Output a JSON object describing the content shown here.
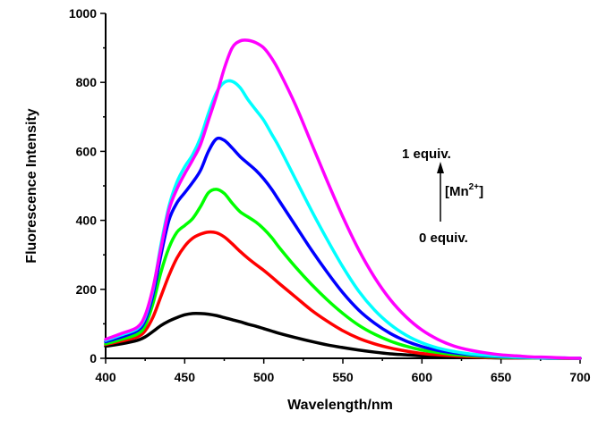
{
  "chart_data": {
    "type": "line",
    "title": "",
    "xlabel": "Wavelength/nm",
    "ylabel": "Fluorescence Intensity",
    "xlim": [
      400,
      700
    ],
    "ylim": [
      0,
      1000
    ],
    "x_ticks": [
      400,
      450,
      500,
      550,
      600,
      650,
      700
    ],
    "y_ticks": [
      0,
      200,
      400,
      600,
      800,
      1000
    ],
    "grid": false,
    "legend": "none",
    "annotations": {
      "top": "1 equiv.",
      "bottom": "0 equiv.",
      "arrow_label_main": "[Mn",
      "arrow_label_sup": "2+",
      "arrow_label_end": "]"
    },
    "x": [
      400,
      410,
      420,
      425,
      430,
      435,
      440,
      445,
      450,
      455,
      460,
      465,
      470,
      475,
      480,
      485,
      490,
      495,
      500,
      505,
      510,
      520,
      530,
      540,
      550,
      560,
      570,
      580,
      590,
      600,
      610,
      620,
      630,
      640,
      650,
      660,
      670,
      680,
      690,
      700
    ],
    "series": [
      {
        "color": "#000000",
        "values": [
          35,
          42,
          52,
          62,
          78,
          95,
          108,
          118,
          126,
          130,
          130,
          128,
          124,
          118,
          112,
          106,
          99,
          93,
          86,
          79,
          72,
          60,
          49,
          39,
          31,
          24,
          18,
          13,
          10,
          7,
          5,
          4,
          3,
          2,
          1,
          1,
          1,
          0,
          0,
          0
        ]
      },
      {
        "color": "#ff0000",
        "values": [
          40,
          50,
          62,
          80,
          120,
          180,
          240,
          290,
          325,
          348,
          360,
          366,
          364,
          352,
          332,
          310,
          290,
          272,
          255,
          236,
          216,
          178,
          140,
          108,
          80,
          58,
          42,
          30,
          21,
          14,
          10,
          7,
          5,
          3,
          2,
          1,
          1,
          1,
          0,
          0
        ]
      },
      {
        "color": "#00ff00",
        "values": [
          42,
          55,
          70,
          95,
          160,
          250,
          320,
          365,
          385,
          405,
          440,
          480,
          490,
          478,
          450,
          425,
          410,
          395,
          375,
          350,
          320,
          265,
          215,
          170,
          130,
          96,
          70,
          50,
          35,
          24,
          17,
          11,
          8,
          5,
          3,
          2,
          1,
          1,
          0,
          0
        ]
      },
      {
        "color": "#0000ff",
        "values": [
          48,
          62,
          80,
          110,
          185,
          300,
          400,
          450,
          480,
          510,
          545,
          600,
          636,
          632,
          610,
          585,
          565,
          545,
          520,
          490,
          455,
          385,
          315,
          250,
          190,
          140,
          102,
          72,
          50,
          34,
          23,
          16,
          11,
          7,
          5,
          3,
          2,
          1,
          1,
          0
        ]
      },
      {
        "color": "#00ffff",
        "values": [
          52,
          68,
          86,
          120,
          200,
          330,
          440,
          510,
          555,
          590,
          640,
          710,
          770,
          800,
          803,
          785,
          750,
          720,
          690,
          650,
          610,
          520,
          430,
          345,
          265,
          195,
          140,
          98,
          67,
          45,
          30,
          20,
          13,
          9,
          6,
          4,
          2,
          1,
          1,
          0
        ]
      },
      {
        "color": "#ff00ff",
        "values": [
          55,
          72,
          90,
          125,
          205,
          320,
          430,
          490,
          535,
          575,
          620,
          690,
          760,
          840,
          900,
          920,
          922,
          915,
          900,
          870,
          830,
          735,
          625,
          515,
          410,
          315,
          235,
          170,
          120,
          82,
          55,
          36,
          24,
          16,
          10,
          7,
          4,
          3,
          1,
          0
        ]
      }
    ]
  }
}
